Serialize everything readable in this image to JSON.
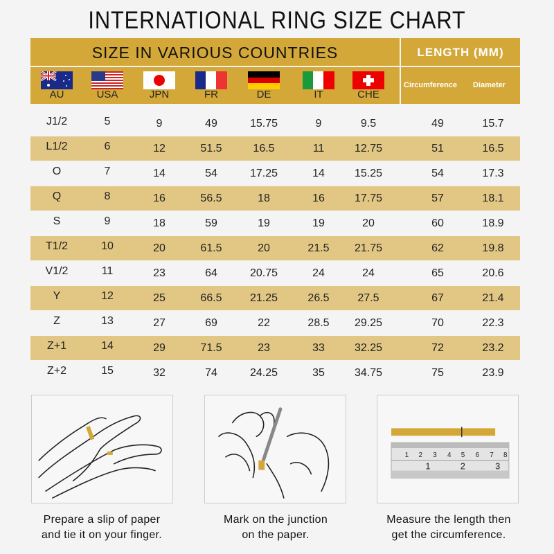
{
  "title": "INTERNATIONAL RING SIZE CHART",
  "header": {
    "countries_label": "SIZE IN VARIOUS COUNTRIES",
    "length_label": "LENGTH (MM)",
    "countries": [
      {
        "code": "AU",
        "flag": "australia-flag"
      },
      {
        "code": "USA",
        "flag": "usa-flag"
      },
      {
        "code": "JPN",
        "flag": "japan-flag"
      },
      {
        "code": "FR",
        "flag": "france-flag"
      },
      {
        "code": "DE",
        "flag": "germany-flag"
      },
      {
        "code": "IT",
        "flag": "italy-flag"
      },
      {
        "code": "CHE",
        "flag": "switzerland-flag"
      }
    ],
    "length_columns": [
      "Circumference",
      "Diameter"
    ]
  },
  "colors": {
    "header_gold": "#d4a838",
    "stripe_gold": "#e2c684",
    "header_text_white": "#ffffff"
  },
  "rows": [
    [
      "J1/2",
      "5",
      "9",
      "49",
      "15.75",
      "9",
      "9.5",
      "49",
      "15.7"
    ],
    [
      "L1/2",
      "6",
      "12",
      "51.5",
      "16.5",
      "11",
      "12.75",
      "51",
      "16.5"
    ],
    [
      "O",
      "7",
      "14",
      "54",
      "17.25",
      "14",
      "15.25",
      "54",
      "17.3"
    ],
    [
      "Q",
      "8",
      "16",
      "56.5",
      "18",
      "16",
      "17.75",
      "57",
      "18.1"
    ],
    [
      "S",
      "9",
      "18",
      "59",
      "19",
      "19",
      "20",
      "60",
      "18.9"
    ],
    [
      "T1/2",
      "10",
      "20",
      "61.5",
      "20",
      "21.5",
      "21.75",
      "62",
      "19.8"
    ],
    [
      "V1/2",
      "11",
      "23",
      "64",
      "20.75",
      "24",
      "24",
      "65",
      "20.6"
    ],
    [
      "Y",
      "12",
      "25",
      "66.5",
      "21.25",
      "26.5",
      "27.5",
      "67",
      "21.4"
    ],
    [
      "Z",
      "13",
      "27",
      "69",
      "22",
      "28.5",
      "29.25",
      "70",
      "22.3"
    ],
    [
      "Z+1",
      "14",
      "29",
      "71.5",
      "23",
      "33",
      "32.25",
      "72",
      "23.2"
    ],
    [
      "Z+2",
      "15",
      "32",
      "74",
      "24.25",
      "35",
      "34.75",
      "75",
      "23.9"
    ]
  ],
  "steps": [
    {
      "line1": "Prepare a slip of paper",
      "line2": "and tie it on your finger.",
      "illustration": "hand-with-paper-strip"
    },
    {
      "line1": "Mark on the junction",
      "line2": "on the paper.",
      "illustration": "hand-marking-paper"
    },
    {
      "line1": "Measure the length then",
      "line2": "get the circumference.",
      "illustration": "ruler-measuring-strip"
    }
  ]
}
